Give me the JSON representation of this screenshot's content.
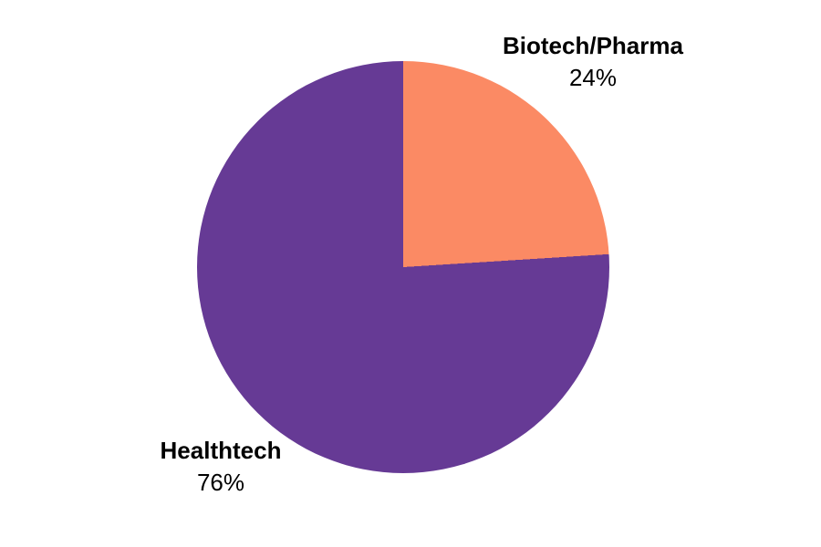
{
  "chart_data": {
    "type": "pie",
    "labels": [
      "Biotech/Pharma",
      "Healthtech"
    ],
    "values": [
      24,
      76
    ],
    "value_labels": [
      "24%",
      "76%"
    ],
    "colors": [
      "#FB8A64",
      "#663A95"
    ],
    "start_angle_deg": 0,
    "direction": "clockwise",
    "legend_position": "none",
    "title": "",
    "background": "#FFFFFF"
  }
}
